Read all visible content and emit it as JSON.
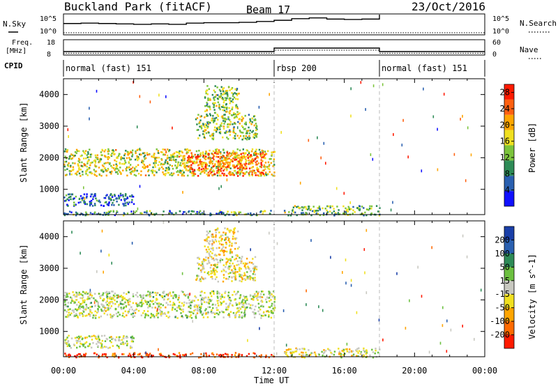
{
  "header": {
    "station": "Buckland Park (fitACF)",
    "beam": "Beam 17",
    "date": "23/Oct/2016"
  },
  "strip_labels": {
    "nsky": "N.Sky",
    "nsearch": "N.Search",
    "freq": "Freq.",
    "freq_unit": "[MHz]",
    "nave": "Nave",
    "cpid": "CPID",
    "nsky_ticks": [
      "10^5",
      "10^0"
    ],
    "nsearch_ticks": [
      "10^5",
      "10^0"
    ],
    "freq_ticks": [
      "18",
      "8"
    ],
    "nave_ticks": [
      "60",
      "0"
    ]
  },
  "cpid_segments": [
    {
      "label": "normal (fast) 151",
      "start_hour": 0,
      "end_hour": 12
    },
    {
      "label": "rbsp 200",
      "start_hour": 12,
      "end_hour": 18
    },
    {
      "label": "normal (fast) 151",
      "start_hour": 18,
      "end_hour": 24
    }
  ],
  "colors": {
    "power": [
      "#1010ff",
      "#2a60b0",
      "#2e8b57",
      "#7cc43c",
      "#f0e020",
      "#ffa500",
      "#ff6010",
      "#ff1a00"
    ],
    "velocity": [
      "#ff1a00",
      "#ff6a00",
      "#ffa500",
      "#f0e020",
      "#c8c8c0",
      "#6cc040",
      "#2e8b57",
      "#2a60b0",
      "#1a3fa8"
    ]
  },
  "chart_data": [
    {
      "type": "line",
      "name": "N.Sky / N.Search",
      "x_hours": [
        0,
        1,
        2,
        3,
        4,
        5,
        6,
        7,
        8,
        9,
        10,
        11,
        12,
        13,
        14,
        15,
        16,
        17,
        18
      ],
      "nsky_log10": [
        2.8,
        2.9,
        2.8,
        2.7,
        2.6,
        2.7,
        2.6,
        2.9,
        3.0,
        3.0,
        3.1,
        3.3,
        3.6,
        4.0,
        4.2,
        3.9,
        3.8,
        3.9,
        5.0
      ],
      "xlim": [
        0,
        24
      ],
      "ylim": [
        0,
        5
      ]
    },
    {
      "type": "line",
      "name": "Freq. / Nave",
      "freq_segments": [
        {
          "start_hour": 0,
          "end_hour": 12,
          "freq_mhz": 10
        },
        {
          "start_hour": 12,
          "end_hour": 18,
          "freq_mhz": 12.5
        },
        {
          "start_hour": 18,
          "end_hour": 24,
          "freq_mhz": 10
        }
      ],
      "nave_segments": [
        {
          "start_hour": 0,
          "end_hour": 12,
          "nave": 5
        },
        {
          "start_hour": 12,
          "end_hour": 18,
          "nave": 18
        },
        {
          "start_hour": 18,
          "end_hour": 24,
          "nave": 5
        }
      ],
      "freq_ylim": [
        8,
        18
      ],
      "nave_ylim": [
        0,
        60
      ]
    },
    {
      "type": "heatmap",
      "name": "Power",
      "xlabel": "",
      "ylabel": "Slant Range [km]",
      "yticks": [
        1000,
        2000,
        3000,
        4000
      ],
      "colorbar_label": "Power [dB]",
      "colorbar_ticks": [
        4,
        8,
        12,
        16,
        20,
        24,
        28
      ],
      "colorbar_range": [
        0,
        30
      ],
      "xlim": [
        0,
        24
      ],
      "ylim": [
        200,
        4500
      ],
      "echo_regions": [
        {
          "feature": "main band",
          "start_hour": 0,
          "end_hour": 12,
          "range_start_km": 1450,
          "range_end_km": 2300,
          "value": 16
        },
        {
          "feature": "enhanced band",
          "start_hour": 7,
          "end_hour": 11.5,
          "range_start_km": 1450,
          "range_end_km": 2200,
          "value": 23
        },
        {
          "feature": "upper arc",
          "start_hour": 7.5,
          "end_hour": 11,
          "range_start_km": 2600,
          "range_end_km": 3400,
          "value": 14
        },
        {
          "feature": "high patch",
          "start_hour": 8,
          "end_hour": 10,
          "range_start_km": 3400,
          "range_end_km": 4300,
          "value": 14
        },
        {
          "feature": "near range",
          "start_hour": 0,
          "end_hour": 4,
          "range_start_km": 500,
          "range_end_km": 900,
          "value": 6
        },
        {
          "feature": "ground scatter",
          "start_hour": 0,
          "end_hour": 12,
          "range_start_km": 200,
          "range_end_km": 350,
          "value": 10
        },
        {
          "feature": "rbsp scatter",
          "start_hour": 12.5,
          "end_hour": 18,
          "range_start_km": 200,
          "range_end_km": 500,
          "value": 12
        }
      ]
    },
    {
      "type": "heatmap",
      "name": "Velocity",
      "xlabel": "Time UT",
      "ylabel": "Slant Range [km]",
      "xticks": [
        "00:00",
        "04:00",
        "08:00",
        "12:00",
        "16:00",
        "20:00",
        "00:00"
      ],
      "yticks": [
        1000,
        2000,
        3000,
        4000
      ],
      "colorbar_label": "Velocity [m s^-1]",
      "colorbar_ticks": [
        -200,
        -100,
        -50,
        -15,
        15,
        50,
        100,
        200
      ],
      "colorbar_range": [
        -250,
        250
      ],
      "xlim": [
        0,
        24
      ],
      "ylim": [
        200,
        4500
      ],
      "echo_regions": [
        {
          "feature": "main band",
          "start_hour": 0,
          "end_hour": 12,
          "range_start_km": 1450,
          "range_end_km": 2300,
          "value": 0
        },
        {
          "feature": "upper arc",
          "start_hour": 7.5,
          "end_hour": 11,
          "range_start_km": 2600,
          "range_end_km": 3400,
          "value": -30
        },
        {
          "feature": "high patch",
          "start_hour": 8,
          "end_hour": 10,
          "range_start_km": 3400,
          "range_end_km": 4300,
          "value": -60
        },
        {
          "feature": "near range",
          "start_hour": 0,
          "end_hour": 4,
          "range_start_km": 500,
          "range_end_km": 900,
          "value": 0
        },
        {
          "feature": "ground scatter",
          "start_hour": 0,
          "end_hour": 12,
          "range_start_km": 200,
          "range_end_km": 350,
          "value": -200
        },
        {
          "feature": "rbsp scatter",
          "start_hour": 12.5,
          "end_hour": 18,
          "range_start_km": 200,
          "range_end_km": 500,
          "value": -40
        }
      ]
    }
  ]
}
